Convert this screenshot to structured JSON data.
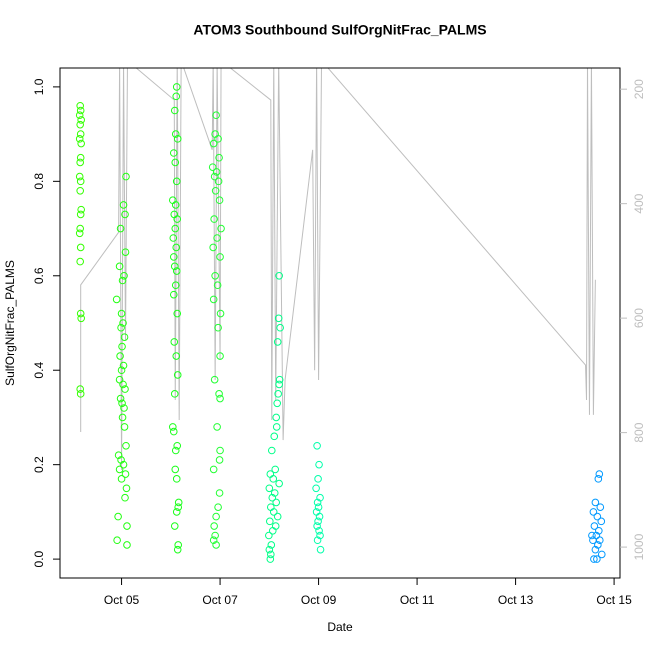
{
  "chart_data": {
    "type": "scatter",
    "title": "ATOM3 Southbound SulfOrgNitFrac_PALMS",
    "x_label": "Date",
    "y_label": "SulfOrgNitFrac_PALMS",
    "xlim": [
      3.75,
      15.12
    ],
    "xticks": [
      {
        "value": 5,
        "label": "Oct 05"
      },
      {
        "value": 7,
        "label": "Oct 07"
      },
      {
        "value": 9,
        "label": "Oct 09"
      },
      {
        "value": 11,
        "label": "Oct 11"
      },
      {
        "value": 13,
        "label": "Oct 13"
      },
      {
        "value": 15,
        "label": "Oct 15"
      }
    ],
    "ylim": [
      -0.04,
      1.04
    ],
    "yticks": [
      {
        "value": 0,
        "label": "0.0"
      },
      {
        "value": 0.2,
        "label": "0.2"
      },
      {
        "value": 0.4,
        "label": "0.4"
      },
      {
        "value": 0.6,
        "label": "0.6"
      },
      {
        "value": 0.8,
        "label": "0.8"
      },
      {
        "value": 1,
        "label": "1.0"
      }
    ],
    "y2lim": [
      1054,
      163
    ],
    "y2ticks": [
      200,
      400,
      600,
      800,
      1000
    ],
    "y2_color": "#bebebe",
    "series": [
      {
        "color": "#bebebe",
        "axis": "y2",
        "x": [
          4.17,
          4.17,
          4.94,
          4.96,
          5.0,
          5.04,
          5.08,
          5.12,
          6.07,
          6.09,
          6.13,
          6.17,
          6.21,
          6.84,
          6.86,
          6.9,
          6.94,
          7.0,
          7.02,
          8.03,
          8.05,
          8.09,
          8.13,
          8.19,
          8.28,
          8.32,
          8.88,
          8.92,
          8.96,
          9.0,
          9.04,
          9.06,
          14.42,
          14.44,
          14.46,
          14.5,
          14.54,
          14.58,
          14.62
        ],
        "values": [
          799,
          542,
          450,
          150,
          865,
          150,
          638,
          150,
          219,
          743,
          150,
          778,
          150,
          306,
          150,
          708,
          150,
          673,
          150,
          219,
          778,
          150,
          743,
          150,
          813,
          708,
          306,
          691,
          150,
          708,
          350,
          150,
          682,
          743,
          150,
          769,
          150,
          769,
          533
        ]
      },
      {
        "color": "#33ff00",
        "x": [
          4.16,
          4.17,
          4.15,
          4.18,
          4.16,
          4.17,
          4.15,
          4.18,
          4.17,
          4.16,
          4.15,
          4.17,
          4.16,
          4.18,
          4.17,
          4.16,
          4.15,
          4.17,
          4.16,
          4.17,
          4.18,
          4.16,
          4.17
        ],
        "values": [
          0.96,
          0.95,
          0.94,
          0.93,
          0.92,
          0.9,
          0.89,
          0.88,
          0.85,
          0.84,
          0.81,
          0.8,
          0.78,
          0.74,
          0.73,
          0.7,
          0.69,
          0.66,
          0.63,
          0.52,
          0.51,
          0.36,
          0.35
        ]
      },
      {
        "color": "#22ff11",
        "x": [
          5.09,
          5.04,
          5.07,
          4.98,
          5.08,
          4.96,
          5.05,
          5.02,
          4.9,
          5.0,
          5.03,
          4.99,
          5.06,
          5.01,
          4.97,
          5.04,
          5.0,
          4.96,
          5.03,
          5.07,
          4.98,
          5.01,
          5.05,
          5.02,
          5.06,
          5.09,
          4.94,
          4.99,
          5.04,
          4.96,
          5.08,
          5.0,
          5.1,
          5.07,
          4.93,
          5.11,
          4.91,
          5.11
        ],
        "values": [
          0.81,
          0.75,
          0.73,
          0.7,
          0.65,
          0.62,
          0.6,
          0.59,
          0.55,
          0.52,
          0.5,
          0.49,
          0.47,
          0.45,
          0.43,
          0.41,
          0.4,
          0.38,
          0.37,
          0.36,
          0.34,
          0.33,
          0.32,
          0.3,
          0.28,
          0.24,
          0.22,
          0.21,
          0.2,
          0.19,
          0.18,
          0.17,
          0.15,
          0.13,
          0.09,
          0.07,
          0.04,
          0.03
        ]
      },
      {
        "color": "#1aff1a",
        "x": [
          6.12,
          6.11,
          6.08,
          6.1,
          6.14,
          6.06,
          6.09,
          6.12,
          6.04,
          6.1,
          6.07,
          6.13,
          6.09,
          6.05,
          6.11,
          6.06,
          6.08,
          6.12,
          6.1,
          6.06,
          6.13,
          6.07,
          6.11,
          6.14,
          6.08,
          6.04,
          6.06,
          6.13,
          6.1,
          6.09,
          6.12,
          6.16,
          6.15,
          6.12,
          6.08,
          6.15,
          6.14
        ],
        "values": [
          1.0,
          0.98,
          0.95,
          0.9,
          0.89,
          0.86,
          0.84,
          0.8,
          0.76,
          0.75,
          0.73,
          0.72,
          0.7,
          0.68,
          0.66,
          0.64,
          0.62,
          0.61,
          0.58,
          0.56,
          0.52,
          0.46,
          0.43,
          0.39,
          0.35,
          0.28,
          0.27,
          0.24,
          0.23,
          0.19,
          0.17,
          0.12,
          0.11,
          0.1,
          0.07,
          0.03,
          0.02
        ]
      },
      {
        "color": "#22ff33",
        "x": [
          6.92,
          6.9,
          6.96,
          6.87,
          6.98,
          6.85,
          6.93,
          6.89,
          6.97,
          6.91,
          6.99,
          6.88,
          7.02,
          6.94,
          6.86,
          7.0,
          6.9,
          6.95,
          6.87,
          7.01,
          6.96,
          7.0,
          6.89,
          6.98,
          7.0,
          6.94,
          7.0,
          6.99,
          6.87,
          6.99,
          6.96,
          6.92,
          6.88,
          6.9,
          6.87,
          6.92
        ],
        "values": [
          0.94,
          0.9,
          0.89,
          0.88,
          0.85,
          0.83,
          0.82,
          0.81,
          0.8,
          0.78,
          0.76,
          0.72,
          0.7,
          0.68,
          0.66,
          0.64,
          0.6,
          0.58,
          0.55,
          0.52,
          0.49,
          0.43,
          0.38,
          0.35,
          0.34,
          0.28,
          0.23,
          0.21,
          0.19,
          0.14,
          0.11,
          0.09,
          0.07,
          0.05,
          0.04,
          0.03
        ]
      },
      {
        "color": "#00ff88",
        "x": [
          8.2,
          8.19,
          8.22,
          8.17,
          8.21,
          8.2,
          8.18,
          8.16,
          8.14,
          8.15,
          8.1,
          8.05,
          8.12,
          8.02,
          8.08,
          8.2,
          8.0,
          8.11,
          8.06,
          8.14,
          8.03,
          8.09,
          8.17,
          8.01,
          8.13,
          8.07,
          7.99,
          8.04,
          8.0,
          8.03,
          8.02
        ],
        "values": [
          0.6,
          0.51,
          0.49,
          0.46,
          0.38,
          0.37,
          0.35,
          0.33,
          0.3,
          0.28,
          0.26,
          0.23,
          0.19,
          0.18,
          0.17,
          0.16,
          0.15,
          0.14,
          0.13,
          0.12,
          0.11,
          0.1,
          0.09,
          0.08,
          0.07,
          0.06,
          0.05,
          0.03,
          0.02,
          0.01,
          0.0
        ]
      },
      {
        "color": "#00ffaa",
        "x": [
          8.97,
          9.01,
          8.99,
          8.95,
          9.03,
          8.98,
          9.0,
          8.96,
          9.02,
          8.99,
          8.97,
          9.01,
          9.03,
          8.98,
          9.04
        ],
        "values": [
          0.24,
          0.2,
          0.17,
          0.15,
          0.13,
          0.12,
          0.11,
          0.1,
          0.09,
          0.08,
          0.07,
          0.06,
          0.05,
          0.04,
          0.02
        ]
      },
      {
        "color": "#0099ff",
        "x": [
          14.7,
          14.68,
          14.62,
          14.72,
          14.58,
          14.66,
          14.74,
          14.6,
          14.69,
          14.55,
          14.64,
          14.71,
          14.57,
          14.67,
          14.62,
          14.75,
          14.59,
          14.65
        ],
        "values": [
          0.18,
          0.17,
          0.12,
          0.11,
          0.1,
          0.09,
          0.08,
          0.07,
          0.06,
          0.05,
          0.05,
          0.04,
          0.04,
          0.03,
          0.02,
          0.01,
          0.0,
          0.0
        ]
      }
    ]
  }
}
